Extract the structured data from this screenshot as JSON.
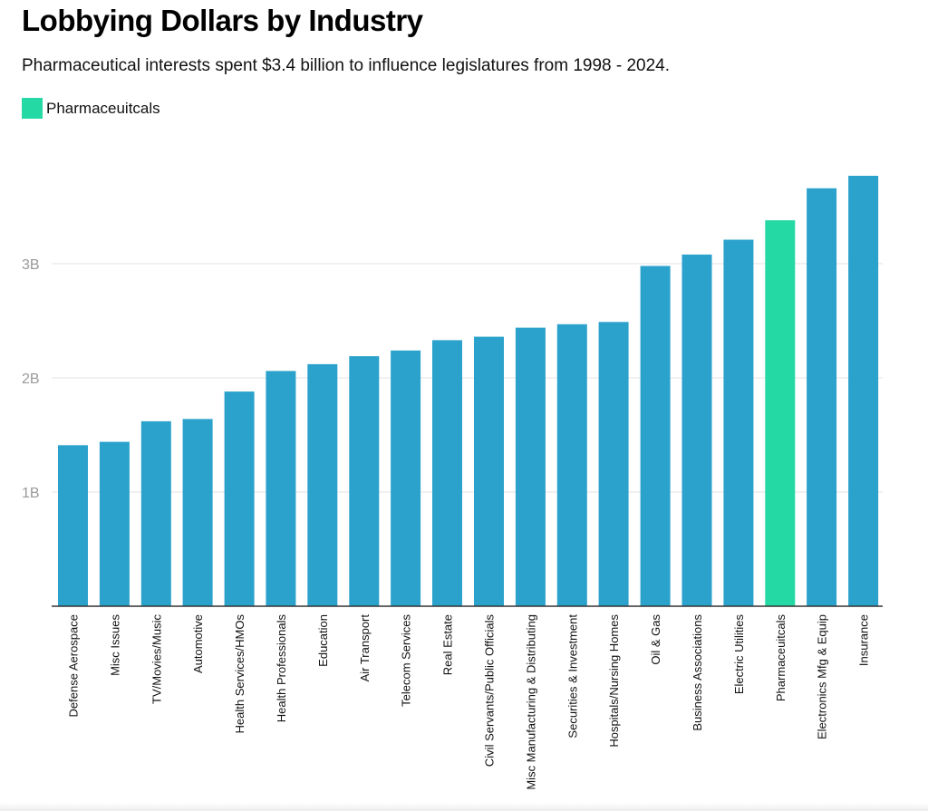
{
  "chart_data": {
    "type": "bar",
    "title": "Lobbying Dollars by Industry",
    "subtitle": "Pharmaceutical interests spent $3.4 billion to influence legislatures from 1998 - 2024.",
    "legend": [
      {
        "label": "Pharmaceuitcals",
        "color": "#25d9a4"
      }
    ],
    "legend_position": "top-left",
    "xlabel": "",
    "ylabel": "",
    "ylim": [
      0,
      4000000000
    ],
    "y_ticks": [
      {
        "value": 1000000000,
        "label": "1B"
      },
      {
        "value": 2000000000,
        "label": "2B"
      },
      {
        "value": 3000000000,
        "label": "3B"
      }
    ],
    "grid": true,
    "colors": {
      "default": "#2ba2cc",
      "highlight": "#25d9a4",
      "gridline": "#e3e3e3",
      "axis": "#333333"
    },
    "categories": [
      "Defense Aerospace",
      "Misc Issues",
      "TV/Movies/Music",
      "Automotive",
      "Health Services/HMOs",
      "Health Professionals",
      "Education",
      "Air Transport",
      "Telecom Services",
      "Real Estate",
      "Civil Servants/Public Officials",
      "Misc Manufacturing & Distributing",
      "Securities & Investment",
      "Hospitals/Nursing Homes",
      "Oil & Gas",
      "Business Associations",
      "Electric Utilities",
      "Pharmaceuitcals",
      "Electronics Mfg & Equip",
      "Insurance"
    ],
    "values": [
      1410000000,
      1440000000,
      1620000000,
      1640000000,
      1880000000,
      2060000000,
      2120000000,
      2190000000,
      2240000000,
      2330000000,
      2360000000,
      2440000000,
      2470000000,
      2490000000,
      2980000000,
      3080000000,
      3210000000,
      3380000000,
      3660000000,
      3770000000
    ],
    "highlight_category": "Pharmaceuitcals"
  }
}
